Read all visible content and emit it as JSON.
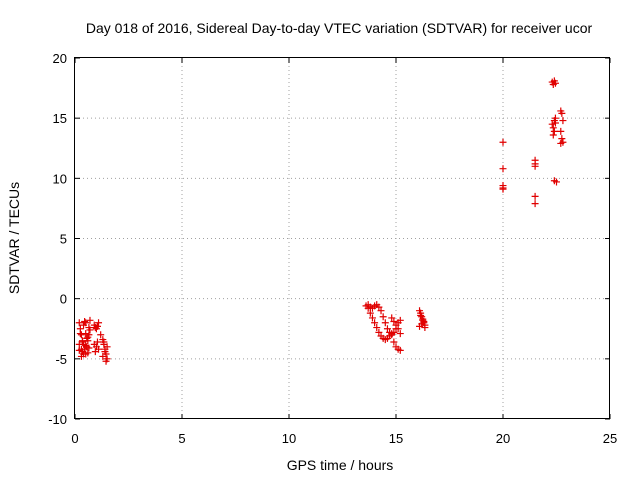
{
  "chart_data": {
    "type": "scatter",
    "title": "Day 018 of 2016, Sidereal Day-to-day VTEC variation (SDTVAR) for receiver ucor",
    "xlabel": "GPS time / hours",
    "ylabel": "SDTVAR / TECUs",
    "xlim": [
      0,
      25
    ],
    "ylim": [
      -10,
      20
    ],
    "xticks": [
      0,
      5,
      10,
      15,
      20,
      25
    ],
    "yticks": [
      -10,
      -5,
      0,
      5,
      10,
      15,
      20
    ],
    "xtick_labels": [
      "0",
      "5",
      "10",
      "15",
      "20",
      "25"
    ],
    "ytick_labels": [
      "-10",
      "-5",
      "0",
      "5",
      "10",
      "15",
      "20"
    ],
    "grid": true,
    "marker": "plus",
    "series": [
      {
        "name": "SDTVAR",
        "color": "#e00000",
        "x": [
          0.2,
          0.25,
          0.3,
          0.35,
          0.4,
          0.45,
          0.5,
          0.55,
          0.6,
          0.65,
          0.7,
          0.2,
          0.3,
          0.4,
          0.5,
          0.6,
          0.7,
          0.25,
          0.35,
          0.45,
          0.55,
          0.65,
          0.3,
          0.4,
          0.5,
          0.6,
          0.2,
          0.35,
          0.5,
          0.65,
          0.9,
          0.95,
          1.0,
          1.05,
          1.1,
          0.9,
          1.0,
          1.1,
          0.95,
          1.05,
          1.2,
          1.3,
          1.35,
          1.4,
          1.45,
          1.5,
          1.3,
          1.4,
          1.5,
          1.35,
          1.45,
          13.6,
          13.7,
          13.8,
          13.9,
          14.0,
          14.1,
          14.2,
          14.3,
          14.4,
          14.5,
          14.6,
          14.7,
          14.8,
          14.9,
          15.0,
          15.1,
          15.2,
          13.7,
          13.8,
          13.9,
          14.0,
          14.1,
          14.2,
          14.3,
          14.4,
          14.5,
          14.6,
          14.7,
          14.8,
          14.9,
          15.0,
          15.1,
          15.2,
          14.8,
          14.9,
          15.0,
          15.1,
          15.2,
          16.1,
          16.15,
          16.2,
          16.25,
          16.3,
          16.35,
          16.1,
          16.2,
          16.3,
          16.15,
          16.25,
          16.35,
          20.0,
          20.0,
          20.0,
          20.0,
          20.0,
          21.5,
          21.5,
          21.5,
          21.5,
          21.5,
          22.3,
          22.35,
          22.4,
          22.45,
          22.3,
          22.4,
          22.35,
          22.45,
          22.4,
          22.4,
          22.35,
          22.45,
          22.5,
          22.7,
          22.75,
          22.8,
          22.7,
          22.75,
          22.8,
          22.7
        ],
        "y": [
          -2.0,
          -2.5,
          -3.0,
          -3.5,
          -3.8,
          -4.2,
          -4.6,
          -4.0,
          -3.2,
          -2.4,
          -1.8,
          -3.8,
          -4.2,
          -4.6,
          -3.9,
          -3.5,
          -2.6,
          -2.9,
          -4.4,
          -1.9,
          -3.3,
          -4.1,
          -4.8,
          -2.2,
          -2.9,
          -4.5,
          -4.3,
          -3.6,
          -2.0,
          -3.0,
          -2.2,
          -2.4,
          -2.5,
          -2.3,
          -2.0,
          -3.8,
          -4.0,
          -4.2,
          -4.4,
          -3.6,
          -3.0,
          -3.4,
          -3.8,
          -4.2,
          -4.6,
          -5.0,
          -4.8,
          -4.4,
          -4.0,
          -3.6,
          -5.2,
          -0.6,
          -0.5,
          -0.7,
          -0.8,
          -0.6,
          -0.5,
          -0.7,
          -1.0,
          -1.5,
          -2.0,
          -2.5,
          -2.8,
          -3.0,
          -2.8,
          -2.5,
          -2.0,
          -1.8,
          -0.8,
          -1.2,
          -1.6,
          -2.0,
          -2.4,
          -2.8,
          -3.1,
          -3.3,
          -3.4,
          -3.3,
          -3.1,
          -2.9,
          -3.6,
          -4.0,
          -4.2,
          -4.3,
          -1.6,
          -1.9,
          -2.2,
          -2.5,
          -2.9,
          -1.0,
          -1.2,
          -1.5,
          -1.8,
          -2.0,
          -2.2,
          -2.3,
          -2.1,
          -1.9,
          -1.4,
          -1.7,
          -2.4,
          13.0,
          10.8,
          9.4,
          9.2,
          9.1,
          11.5,
          11.2,
          11.0,
          8.5,
          7.9,
          18.0,
          17.8,
          18.1,
          17.9,
          14.5,
          14.8,
          14.2,
          15.0,
          13.9,
          9.8,
          13.6,
          14.6,
          9.7,
          15.6,
          15.4,
          14.8,
          13.9,
          13.3,
          13.0,
          12.9
        ]
      }
    ]
  }
}
